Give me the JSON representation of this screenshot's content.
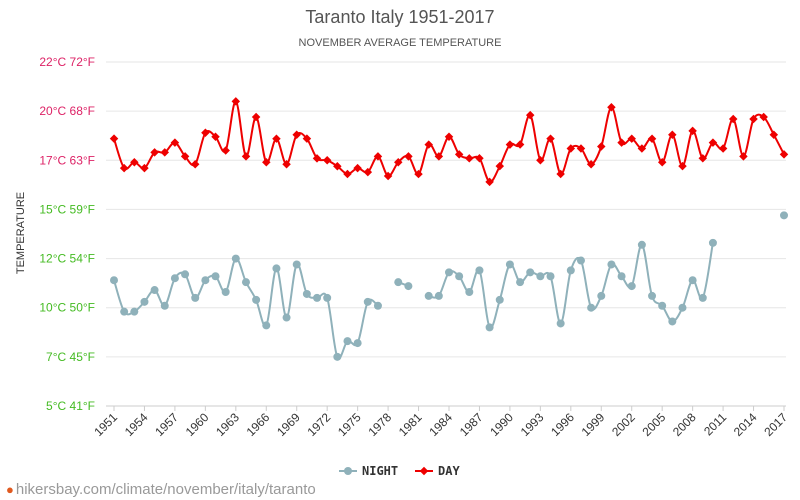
{
  "chart_data": {
    "type": "line",
    "title": "Taranto Italy 1951-2017",
    "subtitle": "NOVEMBER AVERAGE TEMPERATURE",
    "ylabel": "TEMPERATURE",
    "ylim": [
      5,
      22
    ],
    "yticks": [
      {
        "value": 5,
        "label": "5°C 41°F",
        "color": "#44bb22"
      },
      {
        "value": 7.5,
        "label": "7°C 45°F",
        "color": "#44bb22"
      },
      {
        "value": 10,
        "label": "10°C 50°F",
        "color": "#44bb22"
      },
      {
        "value": 12.5,
        "label": "12°C 54°F",
        "color": "#44bb22"
      },
      {
        "value": 15,
        "label": "15°C 59°F",
        "color": "#44bb22"
      },
      {
        "value": 17.5,
        "label": "17°C 63°F",
        "color": "#dd2266"
      },
      {
        "value": 20,
        "label": "20°C 68°F",
        "color": "#dd2266"
      },
      {
        "value": 22.5,
        "label": "22°C 72°F",
        "color": "#dd2266"
      }
    ],
    "xlim": [
      1951,
      2017
    ],
    "xtick_labels": [
      "1951",
      "1954",
      "1957",
      "1960",
      "1963",
      "1966",
      "1969",
      "1972",
      "1975",
      "1978",
      "1981",
      "1984",
      "1987",
      "1990",
      "1993",
      "1996",
      "1999",
      "2002",
      "2005",
      "2008",
      "2011",
      "2014",
      "2017"
    ],
    "start_year": 1951,
    "series": [
      {
        "name": "DAY",
        "color": "#ee0000",
        "marker": "diamond",
        "values": [
          18.6,
          17.1,
          17.4,
          17.1,
          17.9,
          17.9,
          18.4,
          17.7,
          17.3,
          18.9,
          18.7,
          18.0,
          20.5,
          17.7,
          19.7,
          17.4,
          18.6,
          17.3,
          18.8,
          18.6,
          17.6,
          17.5,
          17.2,
          16.8,
          17.1,
          16.9,
          17.7,
          16.7,
          17.4,
          17.7,
          16.8,
          18.3,
          17.7,
          18.7,
          17.8,
          17.6,
          17.6,
          16.4,
          17.2,
          18.3,
          18.3,
          19.8,
          17.5,
          18.6,
          16.8,
          18.1,
          18.1,
          17.3,
          18.2,
          20.2,
          18.4,
          18.6,
          18.1,
          18.6,
          17.4,
          18.8,
          17.2,
          19.0,
          17.6,
          18.4,
          18.1,
          19.6,
          17.7,
          19.6,
          19.7,
          18.8,
          17.8
        ]
      },
      {
        "name": "NIGHT",
        "color": "#8fb1ba",
        "marker": "circle",
        "values": [
          11.4,
          9.8,
          9.8,
          10.3,
          10.9,
          10.1,
          11.5,
          11.7,
          10.5,
          11.4,
          11.6,
          10.8,
          12.5,
          11.3,
          10.4,
          9.1,
          12.0,
          9.5,
          12.2,
          10.7,
          10.5,
          10.5,
          7.5,
          8.3,
          8.2,
          10.3,
          10.1,
          null,
          11.3,
          11.1,
          null,
          10.6,
          10.6,
          11.8,
          11.6,
          10.8,
          11.9,
          9.0,
          10.4,
          12.2,
          11.3,
          11.8,
          11.6,
          11.6,
          9.2,
          11.9,
          12.4,
          10.0,
          10.6,
          12.2,
          11.6,
          11.1,
          13.2,
          10.6,
          10.1,
          9.3,
          10.0,
          11.4,
          10.5,
          13.3,
          null,
          null,
          null,
          null,
          null,
          null,
          14.7
        ]
      }
    ],
    "legend": {
      "position": "bottom-center",
      "items": [
        "NIGHT",
        "DAY"
      ]
    }
  },
  "watermark": "hikersbay.com/climate/november/italy/taranto"
}
